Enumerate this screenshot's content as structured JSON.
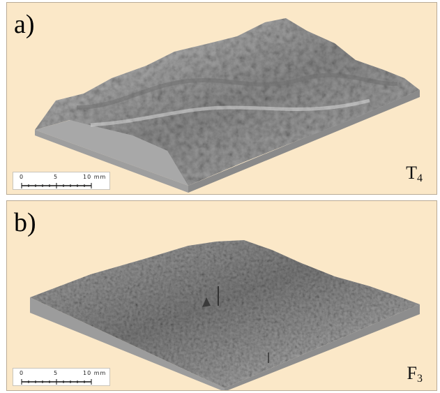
{
  "panels": [
    {
      "letter": "a)",
      "sample_label_main": "T",
      "sample_label_sub": "4",
      "scale": {
        "labels": [
          "0",
          "5",
          "10 mm"
        ]
      }
    },
    {
      "letter": "b)",
      "sample_label_main": "F",
      "sample_label_sub": "3",
      "scale": {
        "labels": [
          "0",
          "5",
          "10 mm"
        ]
      }
    }
  ],
  "colors": {
    "panel_background": "#fbe8c8",
    "surface_light": "#d9d9d9",
    "surface_dark": "#5a5a5a",
    "side_wall": "#9a9a9a"
  }
}
